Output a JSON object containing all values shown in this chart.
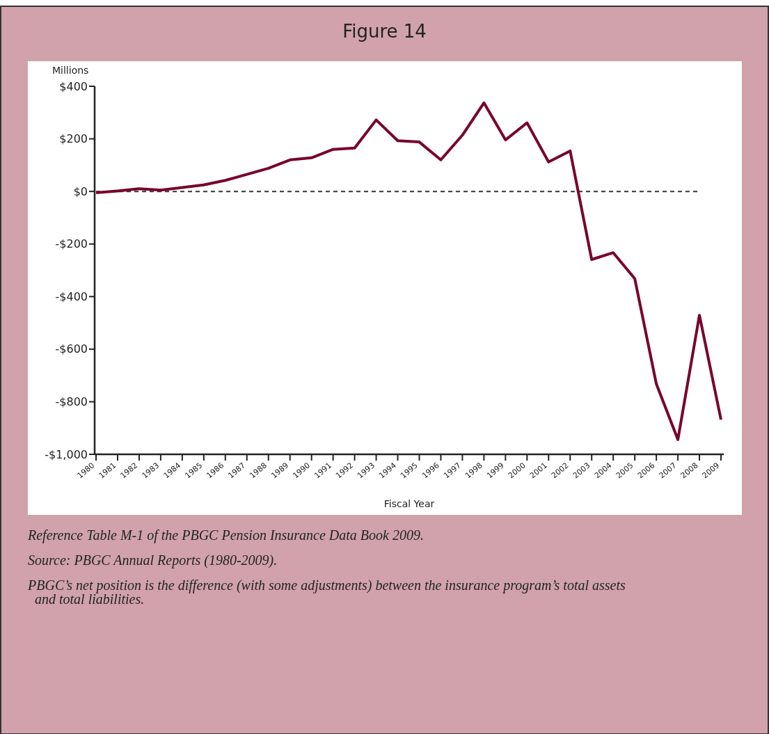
{
  "chart_data": {
    "type": "line",
    "title": "Figure 14",
    "ylabel": "Millions",
    "xlabel": "Fiscal Year",
    "categories": [
      "1980",
      "1981",
      "1982",
      "1983",
      "1984",
      "1985",
      "1986",
      "1987",
      "1988",
      "1989",
      "1990",
      "1991",
      "1992",
      "1993",
      "1994",
      "1995",
      "1996",
      "1997",
      "1998",
      "1999",
      "2000",
      "2001",
      "2002",
      "2003",
      "2004",
      "2005",
      "2006",
      "2007",
      "2008",
      "2009"
    ],
    "series": [
      {
        "color": "#78002e",
        "values": [
          -5,
          2,
          10,
          5,
          15,
          25,
          42,
          65,
          88,
          120,
          128,
          160,
          165,
          272,
          193,
          188,
          120,
          214,
          337,
          196,
          261,
          112,
          154,
          -259,
          -233,
          -332,
          -732,
          -944,
          -471,
          -868
        ]
      }
    ],
    "ylim": [
      -1000,
      400
    ],
    "yticks": [
      {
        "value": 400,
        "label": "$400"
      },
      {
        "value": 200,
        "label": "$200"
      },
      {
        "value": 0,
        "label": "$0"
      },
      {
        "value": -200,
        "label": "-$200"
      },
      {
        "value": -400,
        "label": "-$400"
      },
      {
        "value": -600,
        "label": "-$600"
      },
      {
        "value": -800,
        "label": "-$800"
      },
      {
        "value": -1000,
        "label": "-$1,000"
      }
    ],
    "ref_lines": [
      {
        "axis": "y",
        "value": 0,
        "color": "#333333",
        "line_style": "dashed"
      }
    ],
    "grid": false,
    "marker": "none",
    "line_style": "solid",
    "annotations": [
      "Reference Table M-1 of the PBGC Pension Insurance Data Book 2009.",
      "Source: PBGC Annual Reports (1980-2009).",
      "PBGC’s net position is the difference (with some adjustments) between the insurance program’s total assets and total liabilities."
    ]
  }
}
